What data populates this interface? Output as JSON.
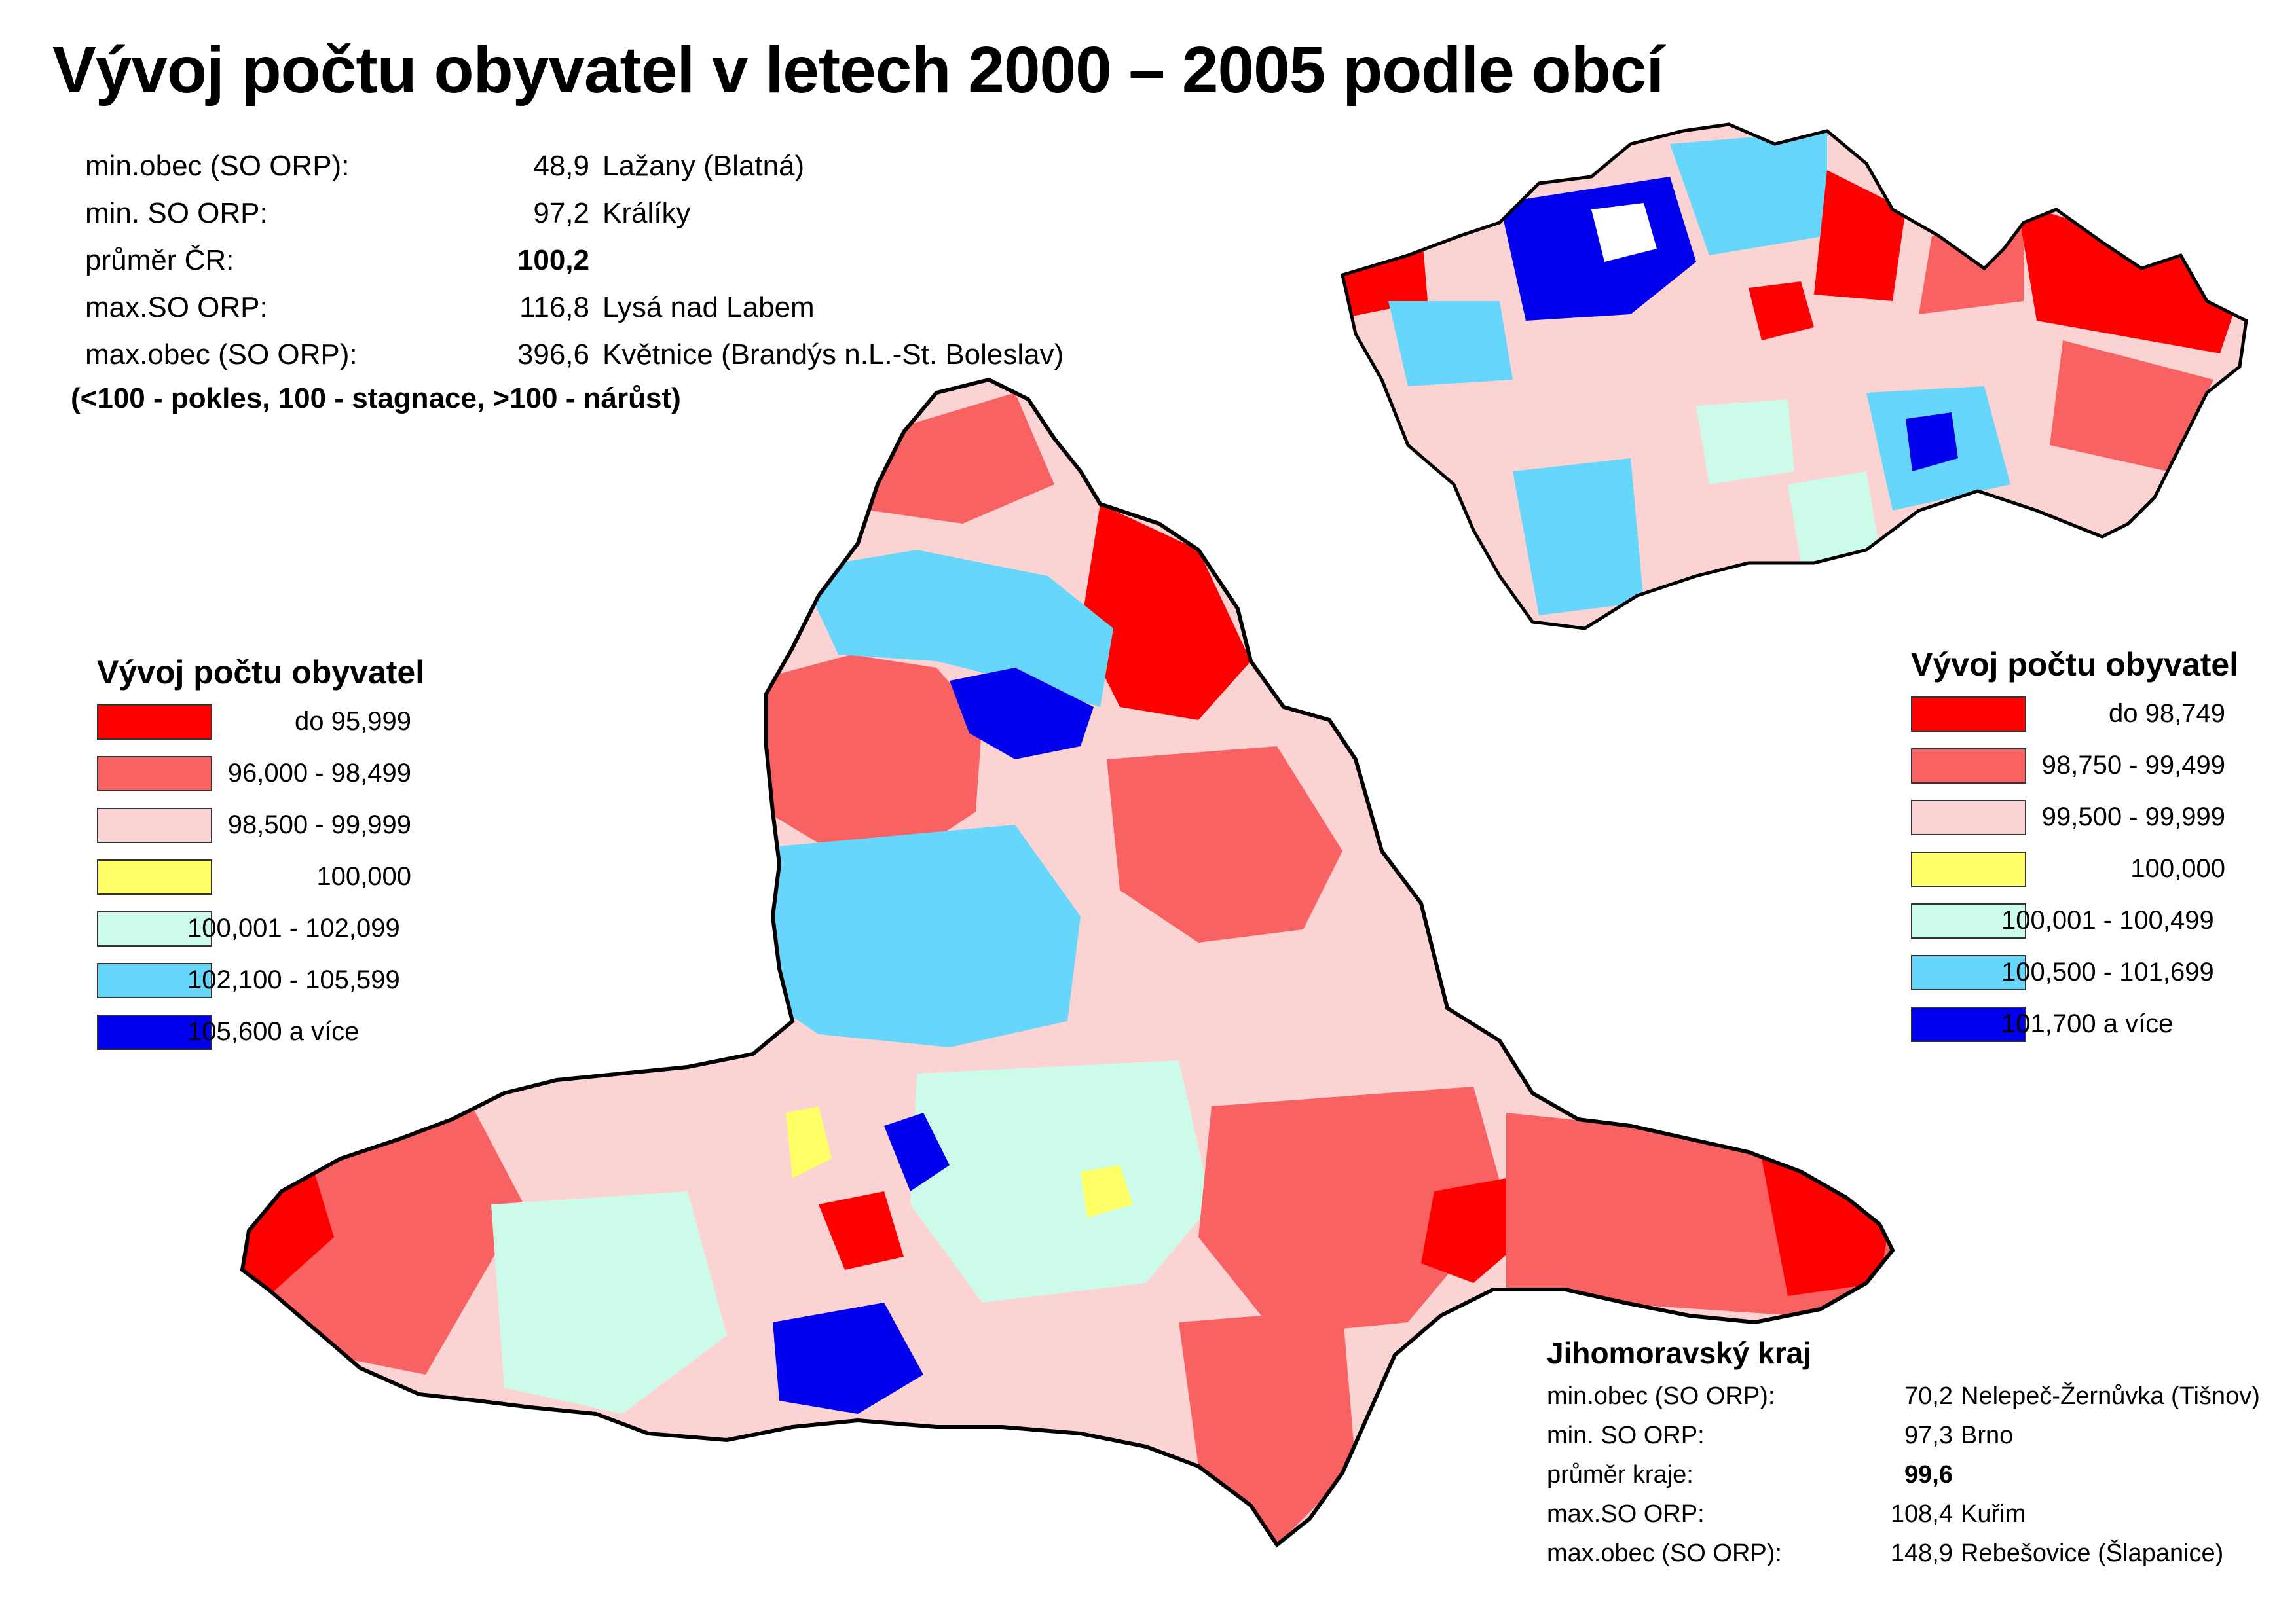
{
  "title": "Vývoj počtu obyvatel v letech 2000 – 2005 podle obcí",
  "cr_stats": [
    {
      "label": "min.obec (SO ORP):",
      "value": "48,9",
      "name": "Lažany (Blatná)",
      "bold": false
    },
    {
      "label": "min. SO ORP:",
      "value": "97,2",
      "name": "Králíky",
      "bold": false
    },
    {
      "label": "průměr ČR:",
      "value": "100,2",
      "name": "",
      "bold": true
    },
    {
      "label": "max.SO ORP:",
      "value": "116,8",
      "name": "Lysá nad Labem",
      "bold": false
    },
    {
      "label": "max.obec (SO ORP):",
      "value": "396,6",
      "name": "Květnice (Brandýs n.L.-St. Boleslav)",
      "bold": false
    }
  ],
  "note": "(<100 - pokles, 100 - stagnace, >100 - nárůst)",
  "legend_kraj": {
    "title": "Vývoj počtu obyvatel",
    "items": [
      {
        "label": "do 95,999",
        "color": "#ff0000"
      },
      {
        "label": "96,000 -   98,499",
        "color": "#f86262"
      },
      {
        "label": "98,500 -   99,999",
        "color": "#fcd3d3"
      },
      {
        "label": "100,000",
        "color": "#ffff66"
      },
      {
        "label": "100,001 - 102,099",
        "color": "#ccfce9"
      },
      {
        "label": "102,100 - 105,599",
        "color": "#66d6fb"
      },
      {
        "label": "105,600 a více",
        "color": "#0000ee"
      }
    ]
  },
  "legend_cr": {
    "title": "Vývoj počtu obyvatel",
    "items": [
      {
        "label": "do 98,749",
        "color": "#ff0000"
      },
      {
        "label": "98,750 -   99,499",
        "color": "#f86262"
      },
      {
        "label": "99,500 -   99,999",
        "color": "#fcd3d3"
      },
      {
        "label": "100,000",
        "color": "#ffff66"
      },
      {
        "label": "100,001 - 100,499",
        "color": "#ccfce9"
      },
      {
        "label": "100,500 - 101,699",
        "color": "#66d6fb"
      },
      {
        "label": "101,700 a více",
        "color": "#0000ee"
      }
    ]
  },
  "jmk": {
    "title": "Jihomoravský kraj",
    "rows": [
      {
        "label": "min.obec (SO ORP):",
        "value": "70,2",
        "name": "Nelepeč-Žernůvka (Tišnov)",
        "bold": false
      },
      {
        "label": "min. SO ORP:",
        "value": "97,3",
        "name": "Brno",
        "bold": false
      },
      {
        "label": "průměr kraje:",
        "value": "99,6",
        "name": "",
        "bold": true
      },
      {
        "label": "max.SO ORP:",
        "value": "108,4",
        "name": "Kuřim",
        "bold": false
      },
      {
        "label": "max.obec (SO ORP):",
        "value": "148,9",
        "name": "Rebešovice (Šlapanice)",
        "bold": false
      }
    ]
  }
}
